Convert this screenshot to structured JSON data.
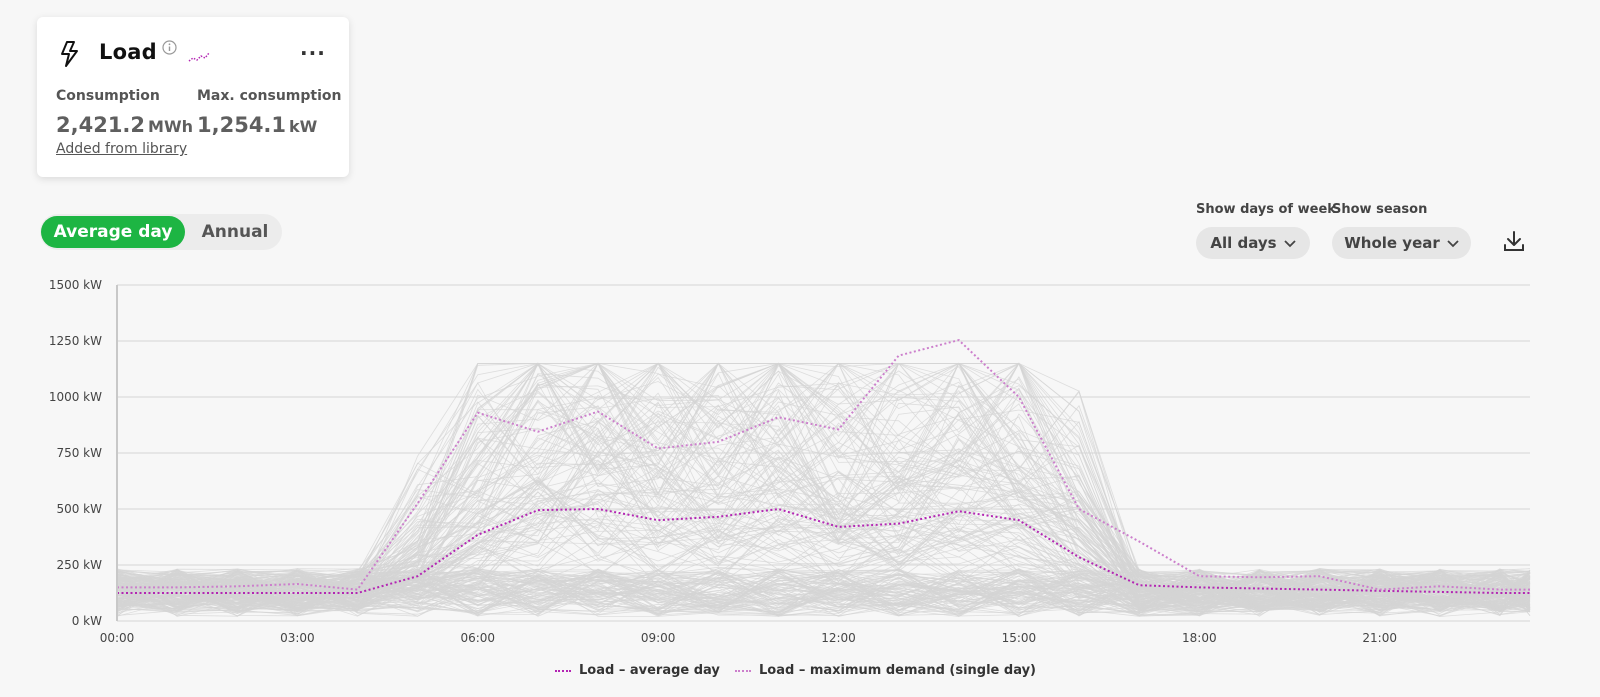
{
  "card": {
    "title": "Load",
    "icons": {
      "bolt": "bolt-icon",
      "info": "info-icon",
      "spark": "sparkline-icon",
      "more": "more-icon"
    },
    "more_label": "...",
    "consumption_label": "Consumption",
    "consumption_value": "2,421.2",
    "consumption_unit": "MWh",
    "max_label": "Max. consumption",
    "max_value": "1,254.1",
    "max_unit": "kW",
    "library_link": "Added from library"
  },
  "view_toggle": {
    "active": "Average day",
    "inactive": "Annual",
    "active_color": "#1db543"
  },
  "filters": {
    "days_label": "Show days of week",
    "days_value": "All days",
    "season_label": "Show season",
    "season_value": "Whole year"
  },
  "colors": {
    "avg": "#b325b3",
    "max": "#cc7fcc",
    "days": "#d4d4d4",
    "grid": "#d6d6d6"
  },
  "chart_data": {
    "type": "line",
    "x_ticks": [
      "00:00",
      "03:00",
      "06:00",
      "09:00",
      "12:00",
      "15:00",
      "18:00",
      "21:00"
    ],
    "y_ticks": [
      "0 kW",
      "250 kW",
      "500 kW",
      "750 kW",
      "1000 kW",
      "1250 kW",
      "1500 kW"
    ],
    "ylim": [
      0,
      1500
    ],
    "xlim": [
      0,
      23.5
    ],
    "unit": "kW",
    "grid": true,
    "legend_position": "bottom-center",
    "x_hours": [
      0,
      1,
      2,
      3,
      4,
      5,
      6,
      7,
      8,
      9,
      10,
      11,
      12,
      13,
      14,
      15,
      16,
      17,
      18,
      19,
      20,
      21,
      22,
      23,
      23.5
    ],
    "series": [
      {
        "name": "Load – average day",
        "style": "dotted",
        "values": [
          125,
          125,
          125,
          125,
          125,
          200,
          385,
          495,
          500,
          450,
          465,
          500,
          420,
          435,
          490,
          450,
          285,
          160,
          150,
          145,
          140,
          135,
          130,
          125,
          125
        ]
      },
      {
        "name": "Load – maximum demand (single day)",
        "style": "dotted",
        "values": [
          150,
          150,
          155,
          165,
          140,
          525,
          930,
          845,
          935,
          770,
          800,
          910,
          855,
          1185,
          1254,
          1000,
          500,
          355,
          200,
          195,
          200,
          140,
          155,
          140,
          140
        ]
      }
    ],
    "background_series_note": "Individual daily profiles (grey)"
  }
}
